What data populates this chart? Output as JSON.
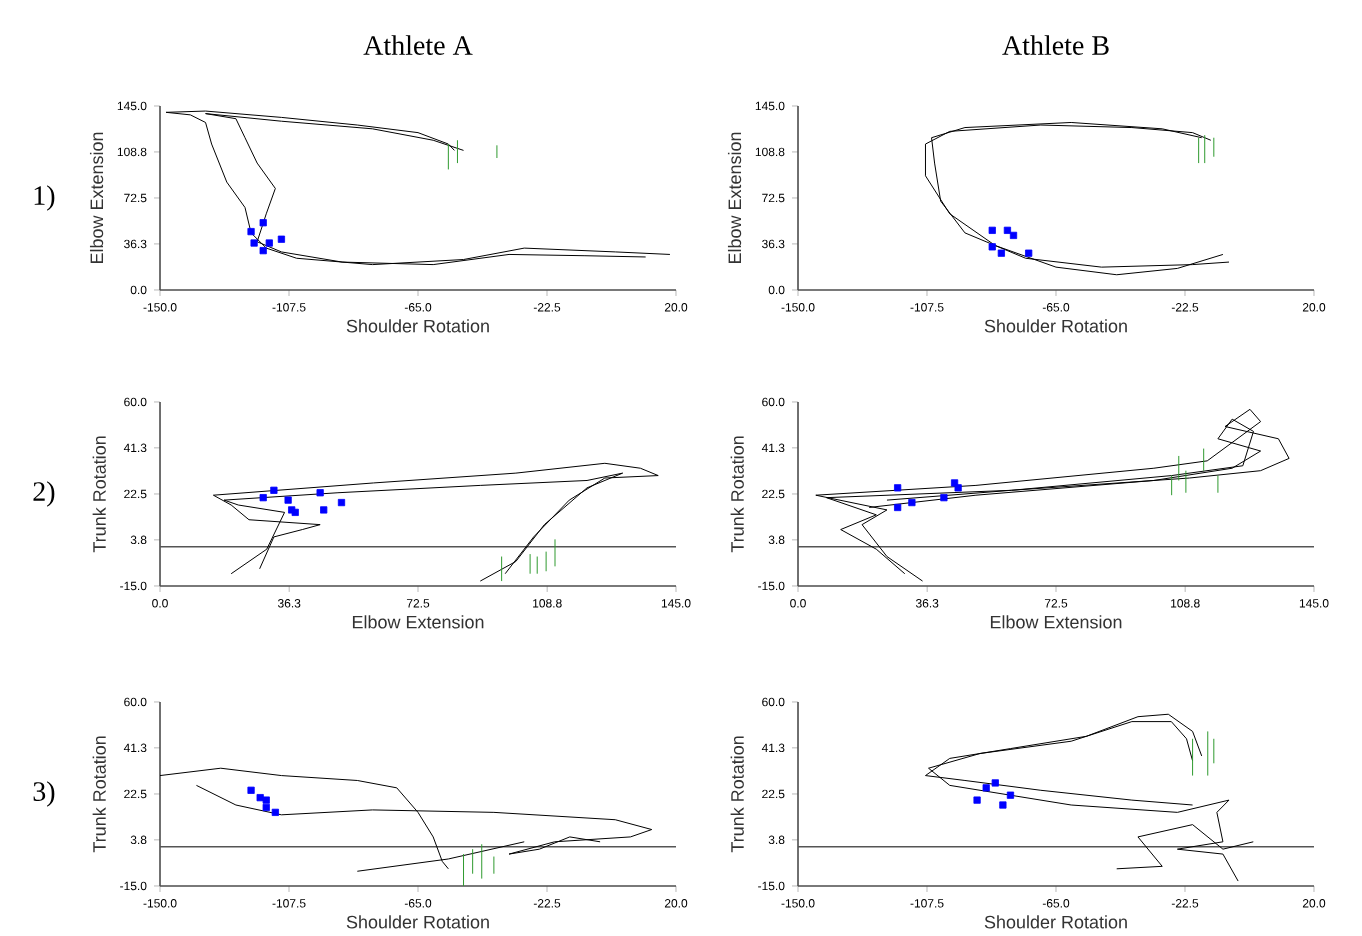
{
  "chart_data": [
    {
      "type": "line",
      "title": "Athlete A",
      "xlabel": "Shoulder Rotation",
      "ylabel": "Elbow Extension",
      "annotations": [
        "1)"
      ],
      "xlim": [
        -150,
        20
      ],
      "ylim": [
        0,
        145
      ],
      "xticks": [
        {
          "value": -150,
          "label": "-150.0"
        },
        {
          "value": -107.5,
          "label": "-107.5"
        },
        {
          "value": -65,
          "label": "-65.0"
        },
        {
          "value": -22.5,
          "label": "-22.5"
        },
        {
          "value": 20,
          "label": "20.0"
        }
      ],
      "yticks": [
        {
          "value": 0,
          "label": "0.0"
        },
        {
          "value": 36.3,
          "label": "36.3"
        },
        {
          "value": 72.5,
          "label": "72.5"
        },
        {
          "value": 108.8,
          "label": "108.8"
        },
        {
          "value": 145,
          "label": "145.0"
        }
      ],
      "series": [
        {
          "color": "#000000",
          "x": [
            18,
            0,
            -30,
            -50,
            -80,
            -105,
            -115,
            -120,
            -122,
            -128,
            -133,
            -135,
            -140,
            -148,
            -135,
            -110,
            -85,
            -65,
            -55,
            -53
          ],
          "values": [
            28,
            30,
            33,
            24,
            20,
            25,
            33,
            45,
            65,
            85,
            115,
            132,
            138,
            140,
            141,
            136,
            130,
            124,
            115,
            110
          ]
        },
        {
          "color": "#000000",
          "x": [
            10,
            -10,
            -35,
            -60,
            -90,
            -110,
            -118,
            -115,
            -112,
            -118,
            -122,
            -125,
            -135,
            -110,
            -80,
            -60,
            -50
          ],
          "values": [
            26,
            27,
            28,
            20,
            22,
            30,
            38,
            60,
            80,
            100,
            120,
            135,
            139,
            133,
            127,
            118,
            110
          ]
        },
        {
          "type": "scatter",
          "marker": "square",
          "color": "#0000ff",
          "x": [
            -120,
            -116,
            -110,
            -119,
            -116,
            -114
          ],
          "values": [
            46,
            53,
            40,
            37,
            31,
            37
          ]
        },
        {
          "color": "#2e9a2e",
          "x": [
            -55,
            -55,
            null,
            -52,
            -52,
            null,
            -39,
            -39
          ],
          "values": [
            95,
            115,
            null,
            100,
            118,
            null,
            104,
            114
          ]
        }
      ]
    },
    {
      "type": "line",
      "title": "Athlete B",
      "xlabel": "Shoulder Rotation",
      "ylabel": "Elbow Extension",
      "xlim": [
        -150,
        20
      ],
      "ylim": [
        0,
        145
      ],
      "xticks": [
        {
          "value": -150,
          "label": "-150.0"
        },
        {
          "value": -107.5,
          "label": "-107.5"
        },
        {
          "value": -65,
          "label": "-65.0"
        },
        {
          "value": -22.5,
          "label": "-22.5"
        },
        {
          "value": 20,
          "label": "20.0"
        }
      ],
      "yticks": [
        {
          "value": 0,
          "label": "0.0"
        },
        {
          "value": 36.3,
          "label": "36.3"
        },
        {
          "value": 72.5,
          "label": "72.5"
        },
        {
          "value": 108.8,
          "label": "108.8"
        },
        {
          "value": 145,
          "label": "145.0"
        }
      ],
      "series": [
        {
          "color": "#000000",
          "x": [
            -10,
            -25,
            -45,
            -65,
            -85,
            -100,
            -108,
            -108,
            -100,
            -70,
            -40,
            -20,
            -14
          ],
          "values": [
            28,
            17,
            12,
            18,
            35,
            60,
            90,
            115,
            125,
            130,
            128,
            124,
            118
          ]
        },
        {
          "color": "#000000",
          "x": [
            -8,
            -20,
            -50,
            -75,
            -95,
            -103,
            -105,
            -106,
            -95,
            -60,
            -30,
            -17
          ],
          "values": [
            22,
            20,
            18,
            25,
            45,
            70,
            100,
            120,
            128,
            132,
            127,
            120
          ]
        },
        {
          "type": "scatter",
          "marker": "square",
          "color": "#0000ff",
          "x": [
            -86,
            -81,
            -79,
            -86,
            -83,
            -74
          ],
          "values": [
            47,
            47,
            43,
            34,
            29,
            29
          ]
        },
        {
          "color": "#2e9a2e",
          "x": [
            -18,
            -18,
            null,
            -16,
            -16,
            null,
            -13,
            -13
          ],
          "values": [
            100,
            120,
            null,
            100,
            122,
            null,
            105,
            120
          ]
        }
      ]
    },
    {
      "type": "line",
      "xlabel": "Elbow Extension",
      "ylabel": "Trunk Rotation",
      "annotations": [
        "2)"
      ],
      "xlim": [
        0,
        145
      ],
      "ylim": [
        -15,
        60
      ],
      "xticks": [
        {
          "value": 0,
          "label": "0.0"
        },
        {
          "value": 36.3,
          "label": "36.3"
        },
        {
          "value": 72.5,
          "label": "72.5"
        },
        {
          "value": 108.8,
          "label": "108.8"
        },
        {
          "value": 145,
          "label": "145.0"
        }
      ],
      "yticks": [
        {
          "value": -15,
          "label": "-15.0"
        },
        {
          "value": 3.8,
          "label": "3.8"
        },
        {
          "value": 22.5,
          "label": "22.5"
        },
        {
          "value": 41.3,
          "label": "41.3"
        },
        {
          "value": 60,
          "label": "60.0"
        }
      ],
      "ref_lines": [
        {
          "axis": "y",
          "value": 1,
          "color": "#555555"
        }
      ],
      "series": [
        {
          "color": "#000000",
          "x": [
            28,
            32,
            40,
            45,
            25,
            20,
            15,
            60,
            100,
            125,
            135,
            140,
            125,
            115,
            105,
            97
          ],
          "values": [
            -8,
            5,
            8,
            10,
            12,
            18,
            22,
            27,
            31,
            35,
            33,
            30,
            29,
            20,
            5,
            -10
          ]
        },
        {
          "color": "#000000",
          "x": [
            20,
            30,
            35,
            22,
            18,
            50,
            90,
            120,
            130,
            120,
            108,
            100,
            90
          ],
          "values": [
            -10,
            0,
            15,
            18,
            20,
            23,
            26,
            28,
            31,
            25,
            10,
            -5,
            -13
          ]
        },
        {
          "type": "scatter",
          "marker": "square",
          "color": "#0000ff",
          "x": [
            29,
            32,
            36,
            37,
            38,
            45,
            46,
            51
          ],
          "values": [
            21,
            24,
            20,
            16,
            15,
            23,
            16,
            19
          ]
        },
        {
          "color": "#2e9a2e",
          "x": [
            96,
            96,
            null,
            104,
            104,
            null,
            106,
            106,
            null,
            108.5,
            108.5,
            null,
            111,
            111
          ],
          "values": [
            -13,
            -3,
            null,
            -10,
            -2,
            null,
            -10,
            -3,
            null,
            -9,
            -1,
            null,
            -7,
            4
          ]
        }
      ]
    },
    {
      "type": "line",
      "xlabel": "Elbow Extension",
      "ylabel": "Trunk Rotation",
      "xlim": [
        0,
        145
      ],
      "ylim": [
        -15,
        60
      ],
      "xticks": [
        {
          "value": 0,
          "label": "0.0"
        },
        {
          "value": 36.3,
          "label": "36.3"
        },
        {
          "value": 72.5,
          "label": "72.5"
        },
        {
          "value": 108.8,
          "label": "108.8"
        },
        {
          "value": 145,
          "label": "145.0"
        }
      ],
      "yticks": [
        {
          "value": -15,
          "label": "-15.0"
        },
        {
          "value": 3.8,
          "label": "3.8"
        },
        {
          "value": 22.5,
          "label": "22.5"
        },
        {
          "value": 41.3,
          "label": "41.3"
        },
        {
          "value": 60,
          "label": "60.0"
        }
      ],
      "ref_lines": [
        {
          "axis": "y",
          "value": 1,
          "color": "#555555"
        }
      ],
      "series": [
        {
          "color": "#000000",
          "x": [
            35,
            25,
            18,
            25,
            5,
            50,
            100,
            115,
            130,
            127,
            120,
            135,
            138,
            130,
            110,
            60,
            25
          ],
          "values": [
            -13,
            -3,
            10,
            16,
            22,
            26,
            33,
            36,
            52,
            57,
            50,
            45,
            37,
            32,
            29,
            24,
            20
          ]
        },
        {
          "color": "#000000",
          "x": [
            30,
            22,
            12,
            22,
            8,
            60,
            105,
            125,
            128,
            122,
            118,
            130,
            122,
            100,
            50,
            20
          ],
          "values": [
            -10,
            0,
            8,
            14,
            21,
            24,
            30,
            34,
            48,
            53,
            45,
            40,
            33,
            28,
            22,
            17
          ]
        },
        {
          "type": "scatter",
          "marker": "square",
          "color": "#0000ff",
          "x": [
            28,
            28,
            32,
            41,
            44,
            45
          ],
          "values": [
            25,
            17,
            19,
            21,
            27,
            25
          ]
        },
        {
          "color": "#2e9a2e",
          "x": [
            105,
            105,
            null,
            107,
            107,
            null,
            109,
            109,
            null,
            114,
            114,
            null,
            118,
            118
          ],
          "values": [
            22,
            30,
            null,
            28,
            38,
            null,
            23,
            32,
            null,
            32,
            41,
            null,
            23,
            30
          ]
        }
      ]
    },
    {
      "type": "line",
      "xlabel": "Shoulder Rotation",
      "ylabel": "Trunk Rotation",
      "annotations": [
        "3)"
      ],
      "xlim": [
        -150,
        20
      ],
      "ylim": [
        -15,
        60
      ],
      "xticks": [
        {
          "value": -150,
          "label": "-150.0"
        },
        {
          "value": -107.5,
          "label": "-107.5"
        },
        {
          "value": -65,
          "label": "-65.0"
        },
        {
          "value": -22.5,
          "label": "-22.5"
        },
        {
          "value": 20,
          "label": "20.0"
        }
      ],
      "yticks": [
        {
          "value": -15,
          "label": "-15.0"
        },
        {
          "value": 3.8,
          "label": "3.8"
        },
        {
          "value": 22.5,
          "label": "22.5"
        },
        {
          "value": 41.3,
          "label": "41.3"
        },
        {
          "value": 60,
          "label": "60.0"
        }
      ],
      "ref_lines": [
        {
          "axis": "y",
          "value": 1,
          "color": "#555555"
        }
      ],
      "series": [
        {
          "color": "#000000",
          "x": [
            -150,
            -130,
            -110,
            -85,
            -72,
            -65,
            -60,
            -57,
            -55
          ],
          "values": [
            30,
            33,
            30,
            28,
            25,
            15,
            5,
            -5,
            -8
          ]
        },
        {
          "color": "#000000",
          "x": [
            -138,
            -125,
            -110,
            -80,
            -40,
            0,
            12,
            5,
            -20,
            -35,
            -25,
            -15,
            -5
          ],
          "values": [
            26,
            18,
            14,
            16,
            15,
            12,
            8,
            5,
            3,
            -2,
            0,
            5,
            3
          ]
        },
        {
          "color": "#000000",
          "x": [
            -85,
            -55,
            -30
          ],
          "values": [
            -9,
            -4,
            3
          ]
        },
        {
          "type": "scatter",
          "marker": "square",
          "color": "#0000ff",
          "x": [
            -120,
            -117,
            -115,
            -112,
            -115
          ],
          "values": [
            24,
            21,
            17,
            15,
            20
          ]
        },
        {
          "color": "#2e9a2e",
          "x": [
            -50,
            -50,
            null,
            -47,
            -47,
            null,
            -44,
            -44,
            null,
            -40,
            -40
          ],
          "values": [
            -15,
            -2,
            null,
            -10,
            0,
            null,
            -12,
            2,
            null,
            -10,
            -3
          ]
        }
      ]
    },
    {
      "type": "line",
      "xlabel": "Shoulder Rotation",
      "ylabel": "Trunk Rotation",
      "xlim": [
        -150,
        20
      ],
      "ylim": [
        -15,
        60
      ],
      "xticks": [
        {
          "value": -150,
          "label": "-150.0"
        },
        {
          "value": -107.5,
          "label": "-107.5"
        },
        {
          "value": -65,
          "label": "-65.0"
        },
        {
          "value": -22.5,
          "label": "-22.5"
        },
        {
          "value": 20,
          "label": "20.0"
        }
      ],
      "yticks": [
        {
          "value": -15,
          "label": "-15.0"
        },
        {
          "value": 3.8,
          "label": "3.8"
        },
        {
          "value": 22.5,
          "label": "22.5"
        },
        {
          "value": 41.3,
          "label": "41.3"
        },
        {
          "value": 60,
          "label": "60.0"
        }
      ],
      "ref_lines": [
        {
          "axis": "y",
          "value": 1,
          "color": "#555555"
        }
      ],
      "series": [
        {
          "color": "#000000",
          "x": [
            -20,
            -40,
            -70,
            -95,
            -108,
            -100,
            -80,
            -55,
            -38,
            -28,
            -20,
            -17
          ],
          "values": [
            18,
            20,
            24,
            28,
            30,
            37,
            41,
            46,
            54,
            55,
            48,
            38
          ]
        },
        {
          "color": "#000000",
          "x": [
            -5,
            -10,
            -25,
            -10,
            -12,
            -8,
            -25,
            -60,
            -100,
            -107,
            -90,
            -60,
            -40,
            -27,
            -22,
            -20
          ],
          "values": [
            -13,
            -2,
            0,
            3,
            15,
            20,
            15,
            18,
            26,
            33,
            39,
            44,
            52,
            52,
            45,
            36
          ]
        },
        {
          "color": "#000000",
          "x": [
            -45,
            -30,
            -38,
            -20,
            -10,
            0
          ],
          "values": [
            -8,
            -7,
            5,
            10,
            0,
            3
          ]
        },
        {
          "type": "scatter",
          "marker": "square",
          "color": "#0000ff",
          "x": [
            -88,
            -85,
            -91,
            -82.5,
            -80
          ],
          "values": [
            25,
            27,
            20,
            18,
            22
          ]
        },
        {
          "color": "#2e9a2e",
          "x": [
            -20,
            -20,
            null,
            -15,
            -15,
            null,
            -13,
            -13
          ],
          "values": [
            30,
            45,
            null,
            30,
            48,
            null,
            35,
            45
          ]
        }
      ]
    }
  ]
}
